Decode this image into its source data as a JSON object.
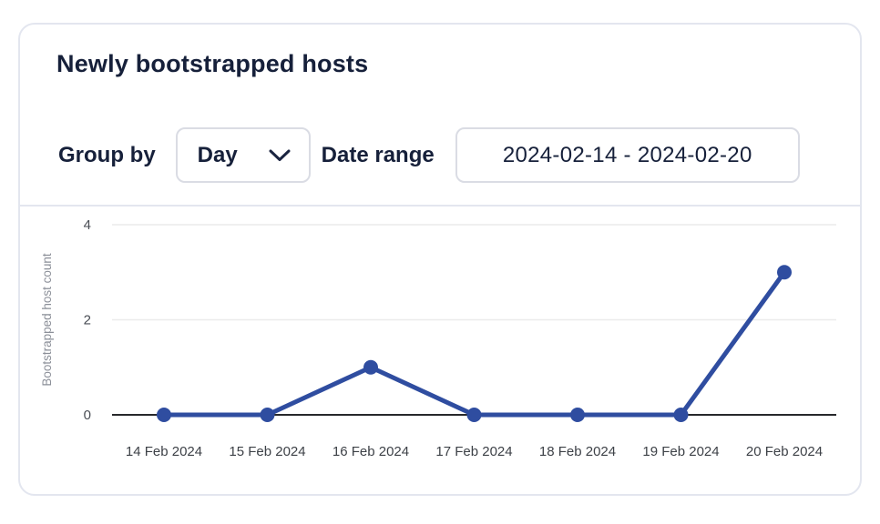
{
  "card": {
    "title": "Newly bootstrapped hosts"
  },
  "controls": {
    "group_by_label": "Group by",
    "group_by_value": "Day",
    "date_range_label": "Date range",
    "date_range_value": "2024-02-14 - 2024-02-20"
  },
  "chart_data": {
    "type": "line",
    "categories": [
      "14 Feb 2024",
      "15 Feb 2024",
      "16 Feb 2024",
      "17 Feb 2024",
      "18 Feb 2024",
      "19 Feb 2024",
      "20 Feb 2024"
    ],
    "values": [
      0,
      0,
      1,
      0,
      0,
      0,
      3
    ],
    "title": "",
    "xlabel": "",
    "ylabel": "Bootstrapped host count",
    "yticks": [
      0,
      2,
      4
    ],
    "ylim": [
      0,
      4.35
    ],
    "grid": true,
    "legend": "none",
    "line_color": "#2f4da0",
    "marker_color": "#2f4da0",
    "grid_color": "#ececec",
    "axis_color": "#27282b",
    "tick_color": "#4a4e55",
    "xlabel_color": "#3d4147",
    "ylabel_color": "#8b8f98"
  }
}
